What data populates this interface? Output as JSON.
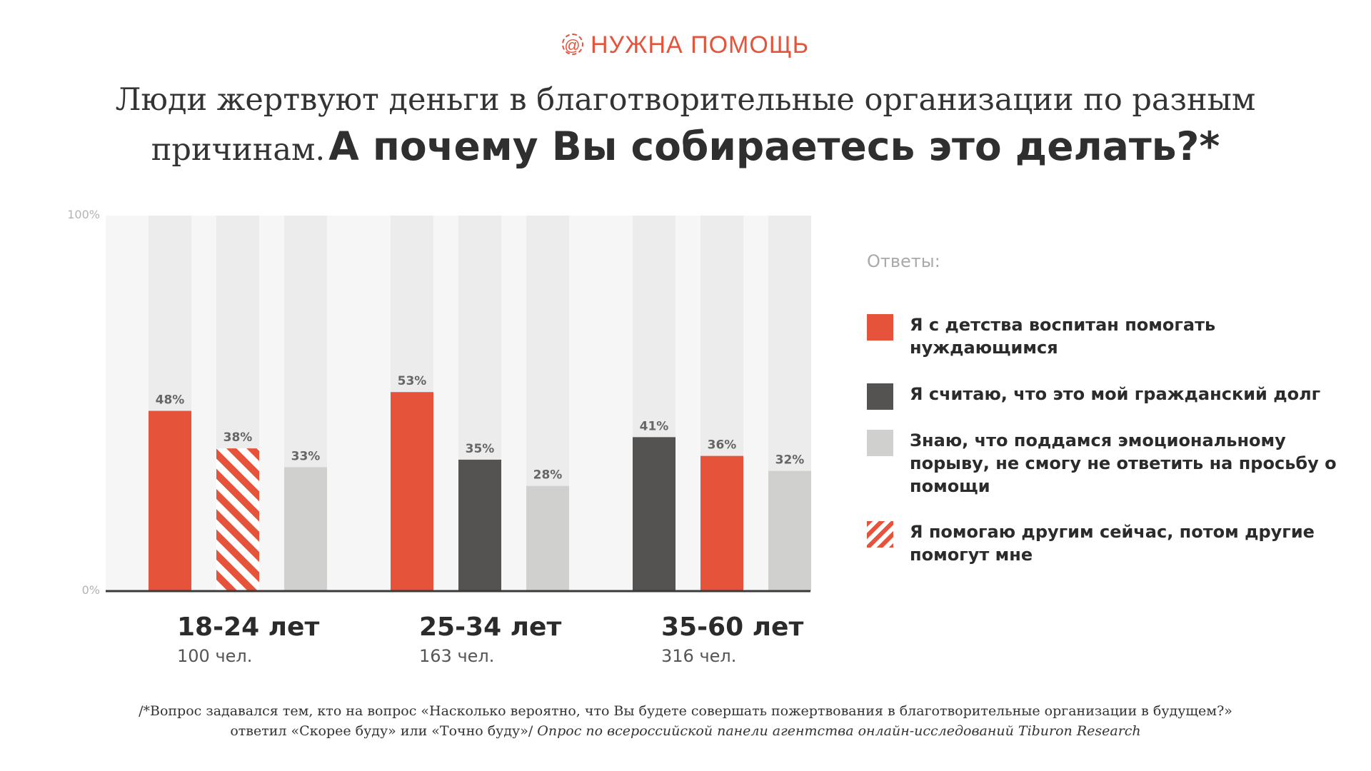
{
  "logo": {
    "mark": "@",
    "text": "НУЖНА ПОМОЩЬ"
  },
  "headline": {
    "regular": "Люди жертвуют деньги в благотворительные организации по разным причинам.",
    "emphasis": "А почему Вы собираетесь это делать?*"
  },
  "colors": {
    "accent": "#e5533a",
    "dark": "#545352",
    "light": "#d0d0cf",
    "track": "#ececec",
    "axis": "#3a3a3a"
  },
  "legend": {
    "heading": "Ответы:",
    "items": [
      {
        "label": "Я с детства воспитан помогать нуждающимся",
        "style": "accent"
      },
      {
        "label": "Я считаю, что это мой гражданский долг",
        "style": "dark"
      },
      {
        "label": "Знаю, что поддамся эмоциональному порыву, не смогу не ответить на просьбу о помощи",
        "style": "light"
      },
      {
        "label": "Я помогаю другим сейчас, потом другие помогут мне",
        "style": "stripes"
      }
    ]
  },
  "chart_data": {
    "type": "bar",
    "ylim": [
      0,
      100
    ],
    "yticks": [
      "0%",
      "100%"
    ],
    "grid": false,
    "legend_position": "right",
    "categories": [
      {
        "label": "18-24 лет",
        "sample": "100 чел."
      },
      {
        "label": "25-34 лет",
        "sample": "163 чел."
      },
      {
        "label": "35-60 лет",
        "sample": "316 чел."
      }
    ],
    "groups": [
      {
        "bars": [
          {
            "value": 48,
            "label": "48%",
            "style": "accent"
          },
          {
            "value": 38,
            "label": "38%",
            "style": "stripes"
          },
          {
            "value": 33,
            "label": "33%",
            "style": "light"
          }
        ]
      },
      {
        "bars": [
          {
            "value": 53,
            "label": "53%",
            "style": "accent"
          },
          {
            "value": 35,
            "label": "35%",
            "style": "dark"
          },
          {
            "value": 28,
            "label": "28%",
            "style": "light"
          }
        ]
      },
      {
        "bars": [
          {
            "value": 41,
            "label": "41%",
            "style": "dark"
          },
          {
            "value": 36,
            "label": "36%",
            "style": "accent"
          },
          {
            "value": 32,
            "label": "32%",
            "style": "light"
          }
        ]
      }
    ]
  },
  "footnote": {
    "line1": "/*Вопрос задавался тем, кто на вопрос «Насколько вероятно, что Вы будете совершать пожертвования в благотворительные организации в будущем?»",
    "line2": "ответил «Скорее буду» или «Точно буду»/",
    "line2_italic": "Опрос по всероссийской панели агентства онлайн-исследований Tiburon Research"
  }
}
